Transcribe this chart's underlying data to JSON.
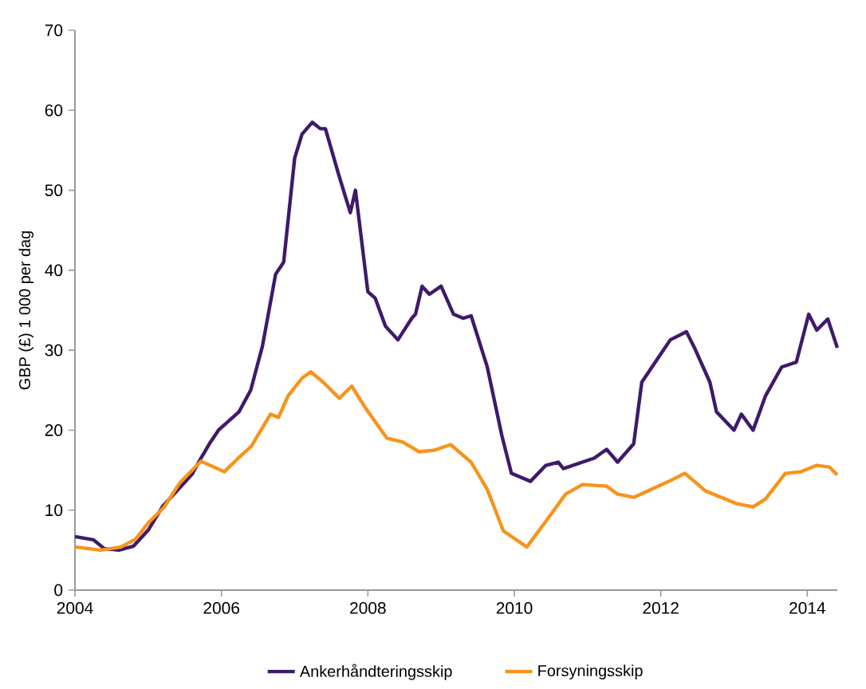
{
  "chart_data": {
    "type": "line",
    "ylabel": "GBP (£) 1 000  per dag",
    "xlim": [
      2004,
      2014.41
    ],
    "ylim": [
      0,
      70
    ],
    "xticks": [
      2004,
      2006,
      2008,
      2010,
      2012,
      2014
    ],
    "yticks": [
      0,
      10,
      20,
      30,
      40,
      50,
      60,
      70
    ],
    "grid": false,
    "legend": "bottom",
    "marker": "none",
    "line_style": "solid",
    "series": [
      {
        "name": "Ankerhåndteringsskip",
        "color": "#3f1a6b",
        "x": [
          2004,
          2004.25,
          2004.4,
          2004.6,
          2004.8,
          2005,
          2005.2,
          2005.4,
          2005.6,
          2005.72,
          2005.85,
          2005.96,
          2006.24,
          2006.4,
          2006.56,
          2006.74,
          2006.85,
          2007,
          2007.1,
          2007.24,
          2007.35,
          2007.42,
          2007.6,
          2007.76,
          2007.83,
          2008,
          2008.1,
          2008.24,
          2008.41,
          2008.6,
          2008.65,
          2008.74,
          2008.84,
          2009,
          2009.17,
          2009.3,
          2009.41,
          2009.63,
          2009.83,
          2009.96,
          2010.22,
          2010.43,
          2010.6,
          2010.67,
          2011.09,
          2011.26,
          2011.41,
          2011.63,
          2011.74,
          2011.96,
          2012.13,
          2012.35,
          2012.46,
          2012.67,
          2012.76,
          2013,
          2013.1,
          2013.26,
          2013.43,
          2013.65,
          2013.85,
          2014.02,
          2014.13,
          2014.28,
          2014.41
        ],
        "values": [
          6.7,
          6.3,
          5.2,
          5,
          5.5,
          7.5,
          10.5,
          12.5,
          14.5,
          16.5,
          18.5,
          20,
          22.3,
          25,
          30.5,
          39.5,
          41,
          54,
          57,
          58.5,
          57.7,
          57.7,
          52,
          47.2,
          50,
          37.3,
          36.5,
          33,
          31.3,
          34,
          34.5,
          38,
          37,
          38,
          34.5,
          34,
          34.3,
          27.9,
          19.3,
          14.6,
          13.6,
          15.6,
          16,
          15.2,
          16.5,
          17.6,
          16,
          18.3,
          26,
          29,
          31.3,
          32.3,
          30.3,
          26,
          22.3,
          20,
          22,
          20,
          24.3,
          27.9,
          28.5,
          34.5,
          32.5,
          33.9,
          30.3
        ]
      },
      {
        "name": "Forsyningsskip",
        "color": "#f7941d",
        "x": [
          2004,
          2004.35,
          2004.63,
          2004.83,
          2005,
          2005.22,
          2005.43,
          2005.72,
          2006.04,
          2006.24,
          2006.41,
          2006.67,
          2006.78,
          2006.91,
          2007.1,
          2007.22,
          2007.39,
          2007.61,
          2007.78,
          2007.98,
          2008.26,
          2008.48,
          2008.7,
          2008.91,
          2009.13,
          2009.41,
          2009.63,
          2009.85,
          2010.17,
          2010.43,
          2010.7,
          2010.93,
          2011.26,
          2011.41,
          2011.63,
          2012.11,
          2012.33,
          2012.61,
          2013.04,
          2013.26,
          2013.43,
          2013.7,
          2013.91,
          2014.13,
          2014.3,
          2014.41
        ],
        "values": [
          5.4,
          5,
          5.4,
          6.4,
          8.4,
          10.4,
          13.4,
          16.1,
          14.8,
          16.6,
          18,
          22,
          21.6,
          24.3,
          26.5,
          27.3,
          26,
          24,
          25.5,
          22.6,
          19,
          18.5,
          17.3,
          17.5,
          18.2,
          16,
          12.6,
          7.4,
          5.4,
          8.6,
          12,
          13.2,
          13,
          12,
          11.6,
          13.6,
          14.6,
          12.4,
          10.8,
          10.4,
          11.4,
          14.6,
          14.8,
          15.6,
          15.4,
          14.4
        ]
      }
    ]
  }
}
